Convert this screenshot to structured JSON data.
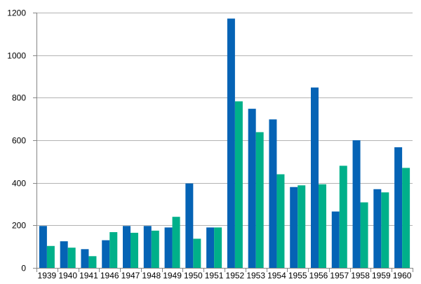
{
  "chart_data": {
    "type": "bar",
    "title": "",
    "xlabel": "",
    "ylabel": "",
    "categories": [
      "1939",
      "1940",
      "1941",
      "1946",
      "1947",
      "1948",
      "1949",
      "1950",
      "1951",
      "1952",
      "1953",
      "1954",
      "1955",
      "1956",
      "1957",
      "1958",
      "1959",
      "1960"
    ],
    "series": [
      {
        "color": "#0563b5",
        "values": [
          197,
          125,
          88,
          130,
          197,
          197,
          190,
          397,
          190,
          1172,
          748,
          698,
          380,
          848,
          265,
          600,
          370,
          567
        ]
      },
      {
        "color": "#00b08a",
        "values": [
          103,
          95,
          55,
          168,
          165,
          175,
          240,
          137,
          190,
          783,
          638,
          440,
          388,
          393,
          480,
          308,
          355,
          470
        ]
      }
    ],
    "ylim": [
      0,
      1200
    ],
    "yticks": [
      0,
      200,
      400,
      600,
      800,
      1000,
      1200
    ],
    "grid": true,
    "legend": "none"
  }
}
